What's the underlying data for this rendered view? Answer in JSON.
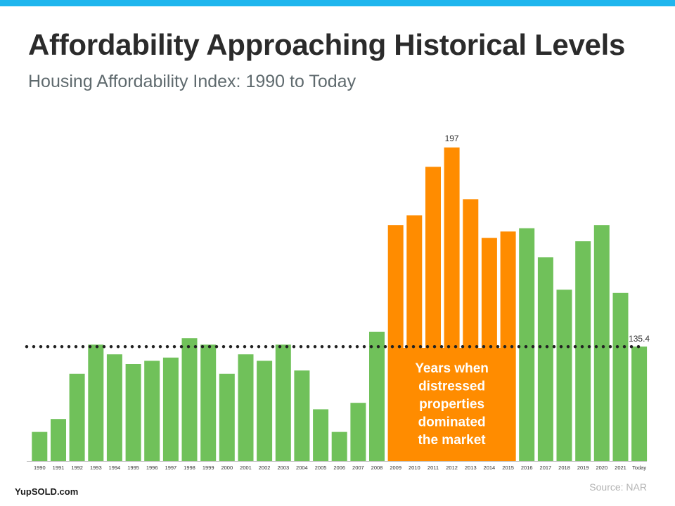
{
  "header": {
    "title": "Affordability Approaching Historical Levels",
    "subtitle": "Housing Affordability Index: 1990 to Today"
  },
  "footer": {
    "brand": "YupSOLD.com",
    "source": "Source: NAR"
  },
  "colors": {
    "top_bar": "#1fb6ee",
    "bar_green": "#70c15a",
    "bar_orange": "#ff8c00",
    "reference_line": "#222222"
  },
  "chart_data": {
    "type": "bar",
    "categories": [
      "1990",
      "1991",
      "1992",
      "1993",
      "1994",
      "1995",
      "1996",
      "1997",
      "1998",
      "1999",
      "2000",
      "2001",
      "2002",
      "2003",
      "2004",
      "2005",
      "2006",
      "2007",
      "2008",
      "2009",
      "2010",
      "2011",
      "2012",
      "2013",
      "2014",
      "2015",
      "2016",
      "2017",
      "2018",
      "2019",
      "2020",
      "2021",
      "Today"
    ],
    "values": [
      109,
      113,
      127,
      136,
      133,
      130,
      131,
      132,
      138,
      136,
      127,
      133,
      131,
      136,
      128,
      116,
      109,
      118,
      140,
      173,
      176,
      191,
      197,
      181,
      169,
      171,
      172,
      163,
      153,
      168,
      173,
      152,
      135.4
    ],
    "highlight_range": [
      "2009",
      "2015"
    ],
    "highlight_label": "Years when distressed properties dominated the market",
    "data_labels": [
      {
        "category": "2012",
        "text": "197"
      },
      {
        "category": "Today",
        "text": "135.4"
      }
    ],
    "reference_line": {
      "value": 135.4,
      "style": "dotted"
    },
    "ylim": [
      100,
      200
    ],
    "grid": false,
    "legend": "none"
  }
}
